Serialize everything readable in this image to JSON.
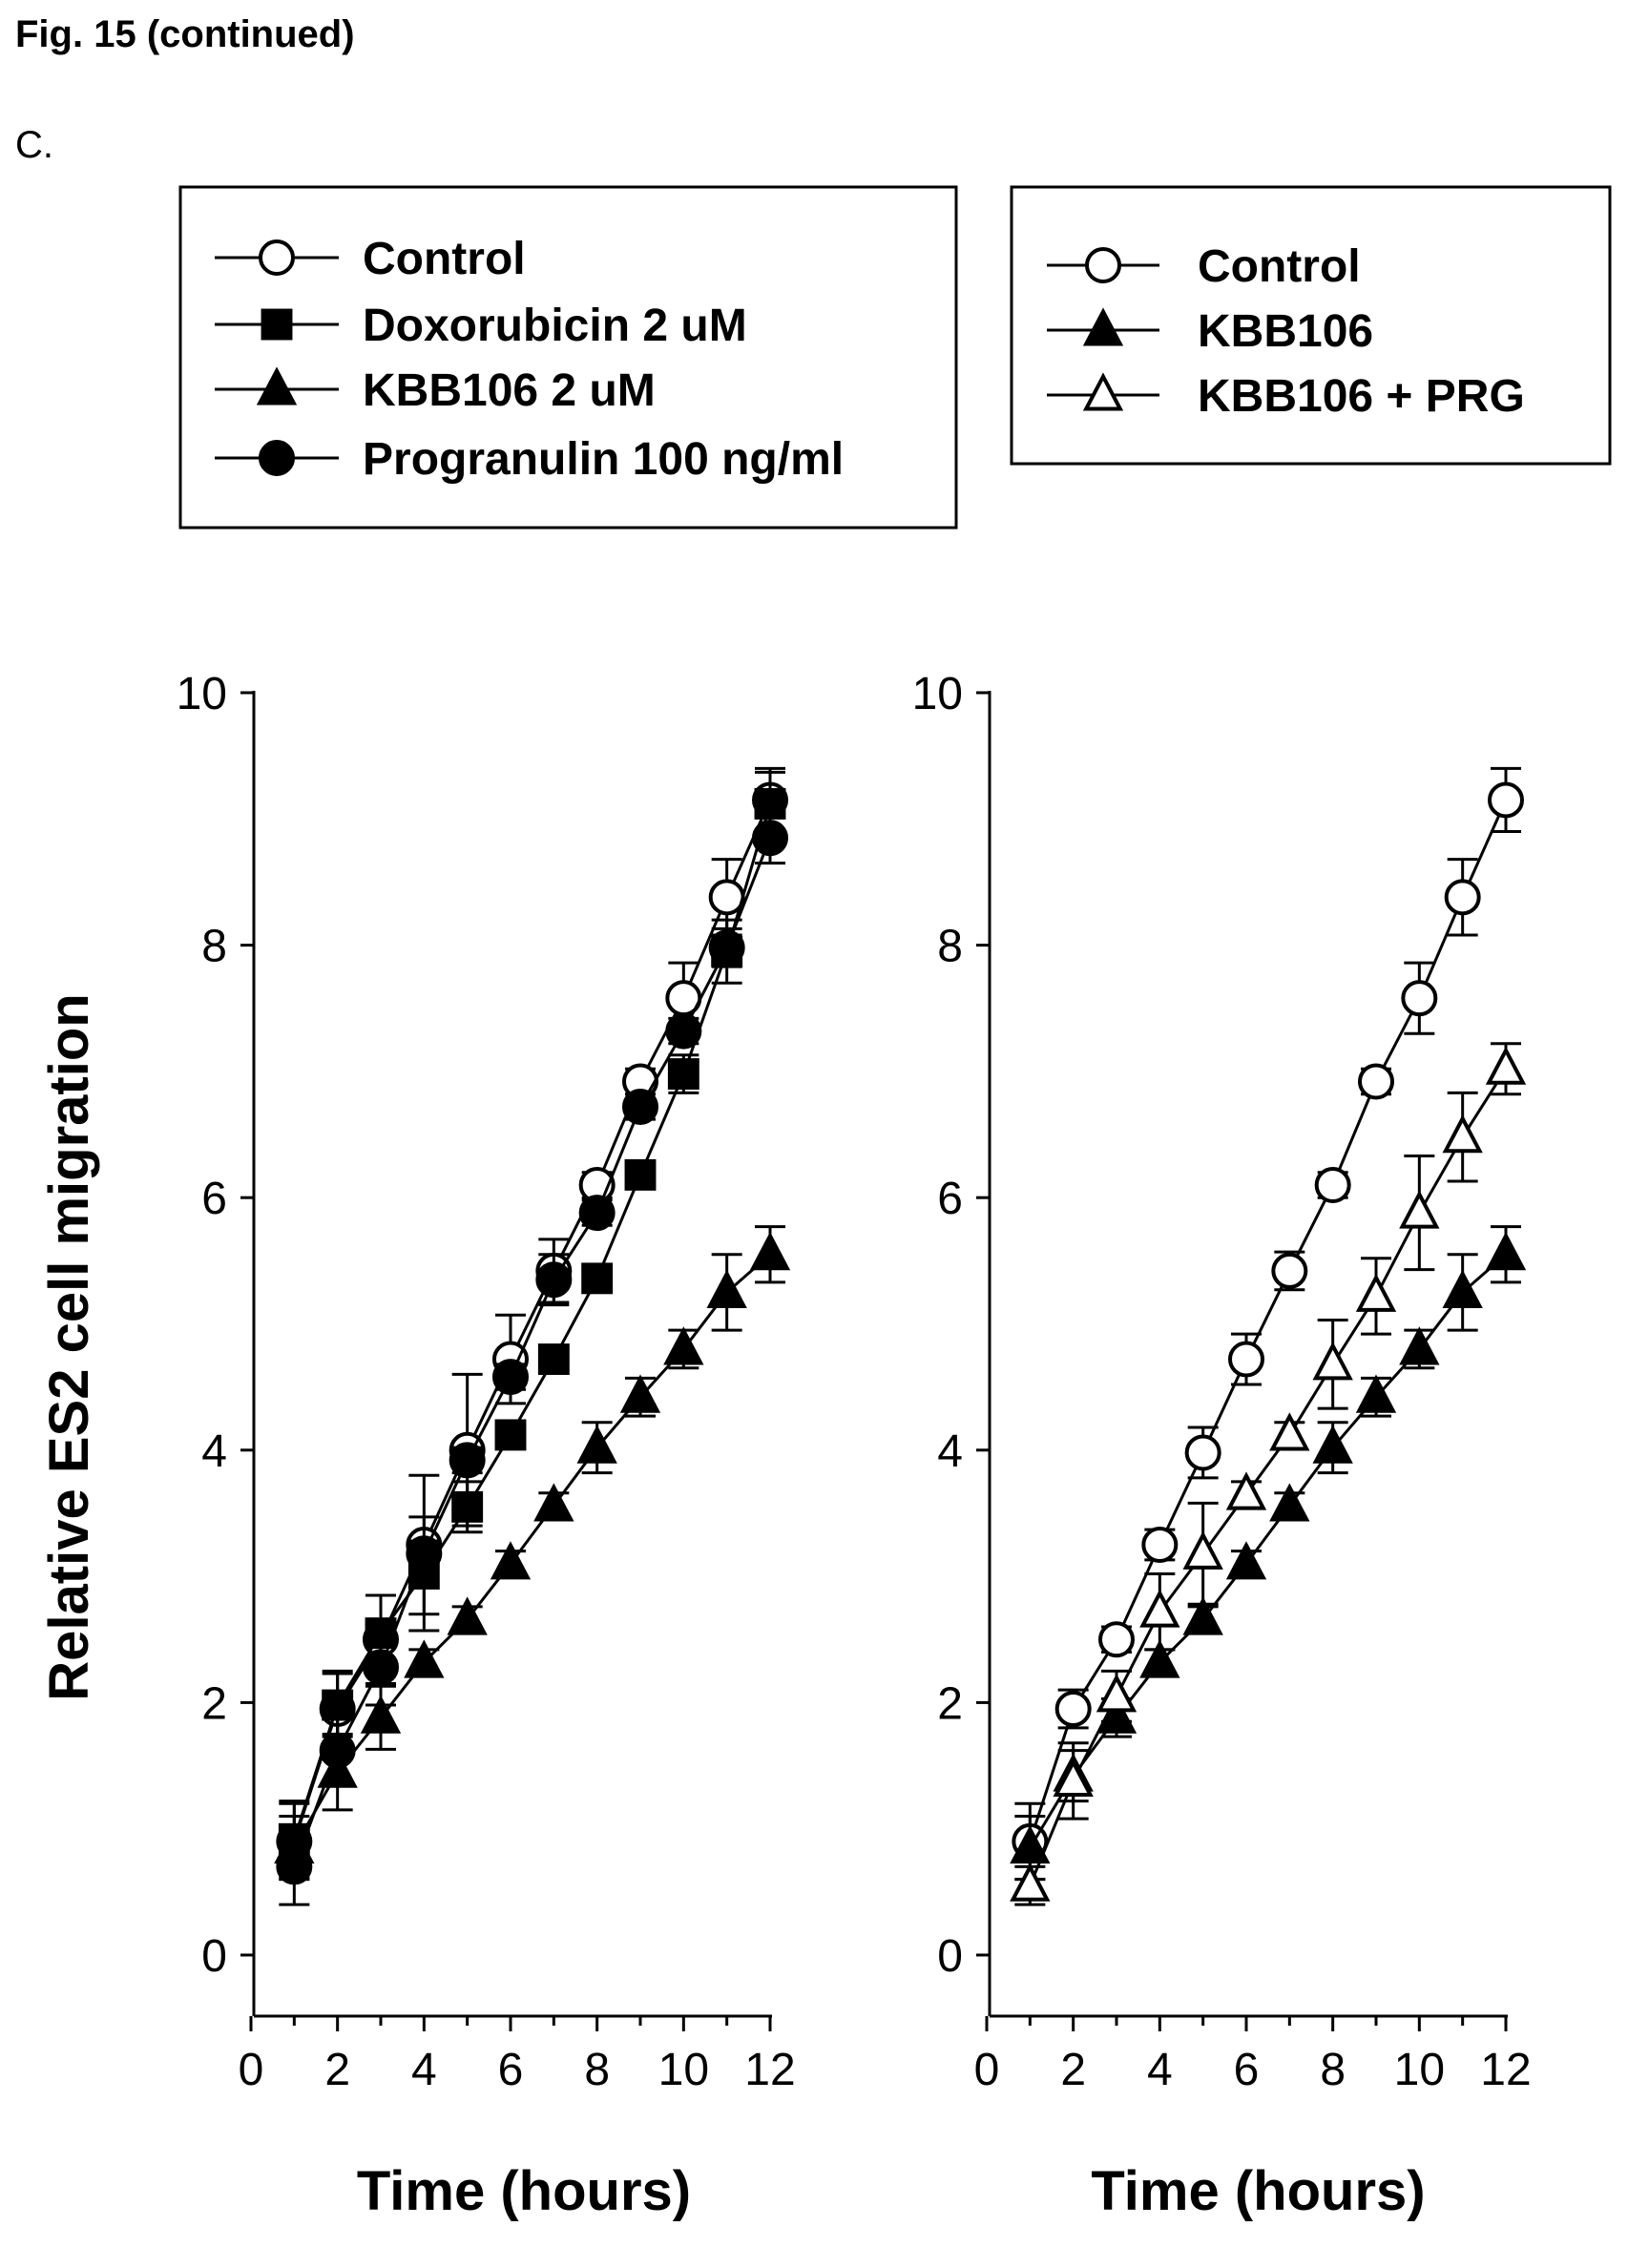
{
  "figure": {
    "title": "Fig. 15 (continued)",
    "panel_label": "C."
  },
  "chart_data": [
    {
      "type": "line",
      "xlabel": "Time (hours)",
      "ylabel": "Relative ES2 cell migration",
      "xlim": [
        0,
        12
      ],
      "ylim": [
        -0.5,
        10
      ],
      "xticks": [
        "0",
        "2",
        "4",
        "6",
        "8",
        "10",
        "12"
      ],
      "yticks": [
        "0",
        "2",
        "4",
        "6",
        "8",
        "10"
      ],
      "legend_position": "top-left",
      "x": [
        1,
        2,
        3,
        4,
        5,
        6,
        7,
        8,
        9,
        10,
        11,
        12
      ],
      "series": [
        {
          "name": "Control",
          "marker": "circle-open",
          "values": [
            0.9,
            1.95,
            2.5,
            3.25,
            4.0,
            4.72,
            5.42,
            6.1,
            6.92,
            7.58,
            8.38,
            9.15
          ],
          "errors": [
            0.3,
            0.3,
            0.35,
            0.55,
            0.6,
            0.35,
            0.25,
            0.1,
            0.1,
            0.28,
            0.3,
            0.25
          ]
        },
        {
          "name": "Doxorubicin 2 uM",
          "marker": "square-filled",
          "values": [
            0.92,
            1.98,
            2.55,
            3.02,
            3.55,
            4.12,
            4.72,
            5.36,
            6.18,
            6.98,
            7.95,
            9.12
          ],
          "errors": [
            0.3,
            0.25,
            0.3,
            0.45,
            0.2,
            0.1,
            0.1,
            0.1,
            0.1,
            0.15,
            0.25,
            0.25
          ]
        },
        {
          "name": "KBB106 2 uM",
          "marker": "triangle-filled",
          "values": [
            0.85,
            1.45,
            1.88,
            2.32,
            2.66,
            3.1,
            3.56,
            4.02,
            4.42,
            4.8,
            5.25,
            5.55
          ],
          "errors": [
            0.25,
            0.3,
            0.25,
            0.1,
            0.1,
            0.1,
            0.1,
            0.2,
            0.15,
            0.15,
            0.3,
            0.22
          ]
        },
        {
          "name": "Progranulin 100 ng/ml",
          "marker": "circle-filled",
          "values": [
            0.7,
            1.62,
            2.28,
            3.18,
            3.92,
            4.58,
            5.35,
            5.88,
            6.72,
            7.32,
            7.98,
            8.85
          ],
          "errors": [
            0.3,
            0.25,
            0.3,
            0.1,
            0.1,
            0.1,
            0.2,
            0.1,
            0.1,
            0.1,
            0.15,
            0.2
          ]
        }
      ]
    },
    {
      "type": "line",
      "xlabel": "Time (hours)",
      "ylabel": "",
      "xlim": [
        0,
        12
      ],
      "ylim": [
        -0.5,
        10
      ],
      "xticks": [
        "0",
        "2",
        "4",
        "6",
        "8",
        "10",
        "12"
      ],
      "yticks": [
        "0",
        "2",
        "4",
        "6",
        "8",
        "10"
      ],
      "legend_position": "top-right",
      "x": [
        1,
        2,
        3,
        4,
        5,
        6,
        7,
        8,
        9,
        10,
        11,
        12
      ],
      "series": [
        {
          "name": "Control",
          "marker": "circle-open",
          "values": [
            0.9,
            1.95,
            2.5,
            3.25,
            3.98,
            4.72,
            5.42,
            6.1,
            6.92,
            7.58,
            8.38,
            9.15
          ],
          "errors": [
            0.3,
            0.15,
            0.1,
            0.12,
            0.2,
            0.2,
            0.15,
            0.1,
            0.1,
            0.28,
            0.3,
            0.25
          ]
        },
        {
          "name": "KBB106",
          "marker": "triangle-filled",
          "values": [
            0.85,
            1.42,
            1.88,
            2.32,
            2.66,
            3.1,
            3.56,
            4.02,
            4.42,
            4.8,
            5.25,
            5.55
          ],
          "errors": [
            0.25,
            0.2,
            0.15,
            0.1,
            0.1,
            0.1,
            0.1,
            0.2,
            0.15,
            0.15,
            0.3,
            0.22
          ]
        },
        {
          "name": "KBB106 + PRG",
          "marker": "triangle-open",
          "values": [
            0.55,
            1.38,
            2.05,
            2.72,
            3.18,
            3.65,
            4.12,
            4.68,
            5.22,
            5.88,
            6.48,
            7.02
          ],
          "errors": [
            0.15,
            0.3,
            0.2,
            0.3,
            0.4,
            0.1,
            0.1,
            0.35,
            0.3,
            0.45,
            0.35,
            0.2
          ]
        }
      ]
    }
  ]
}
